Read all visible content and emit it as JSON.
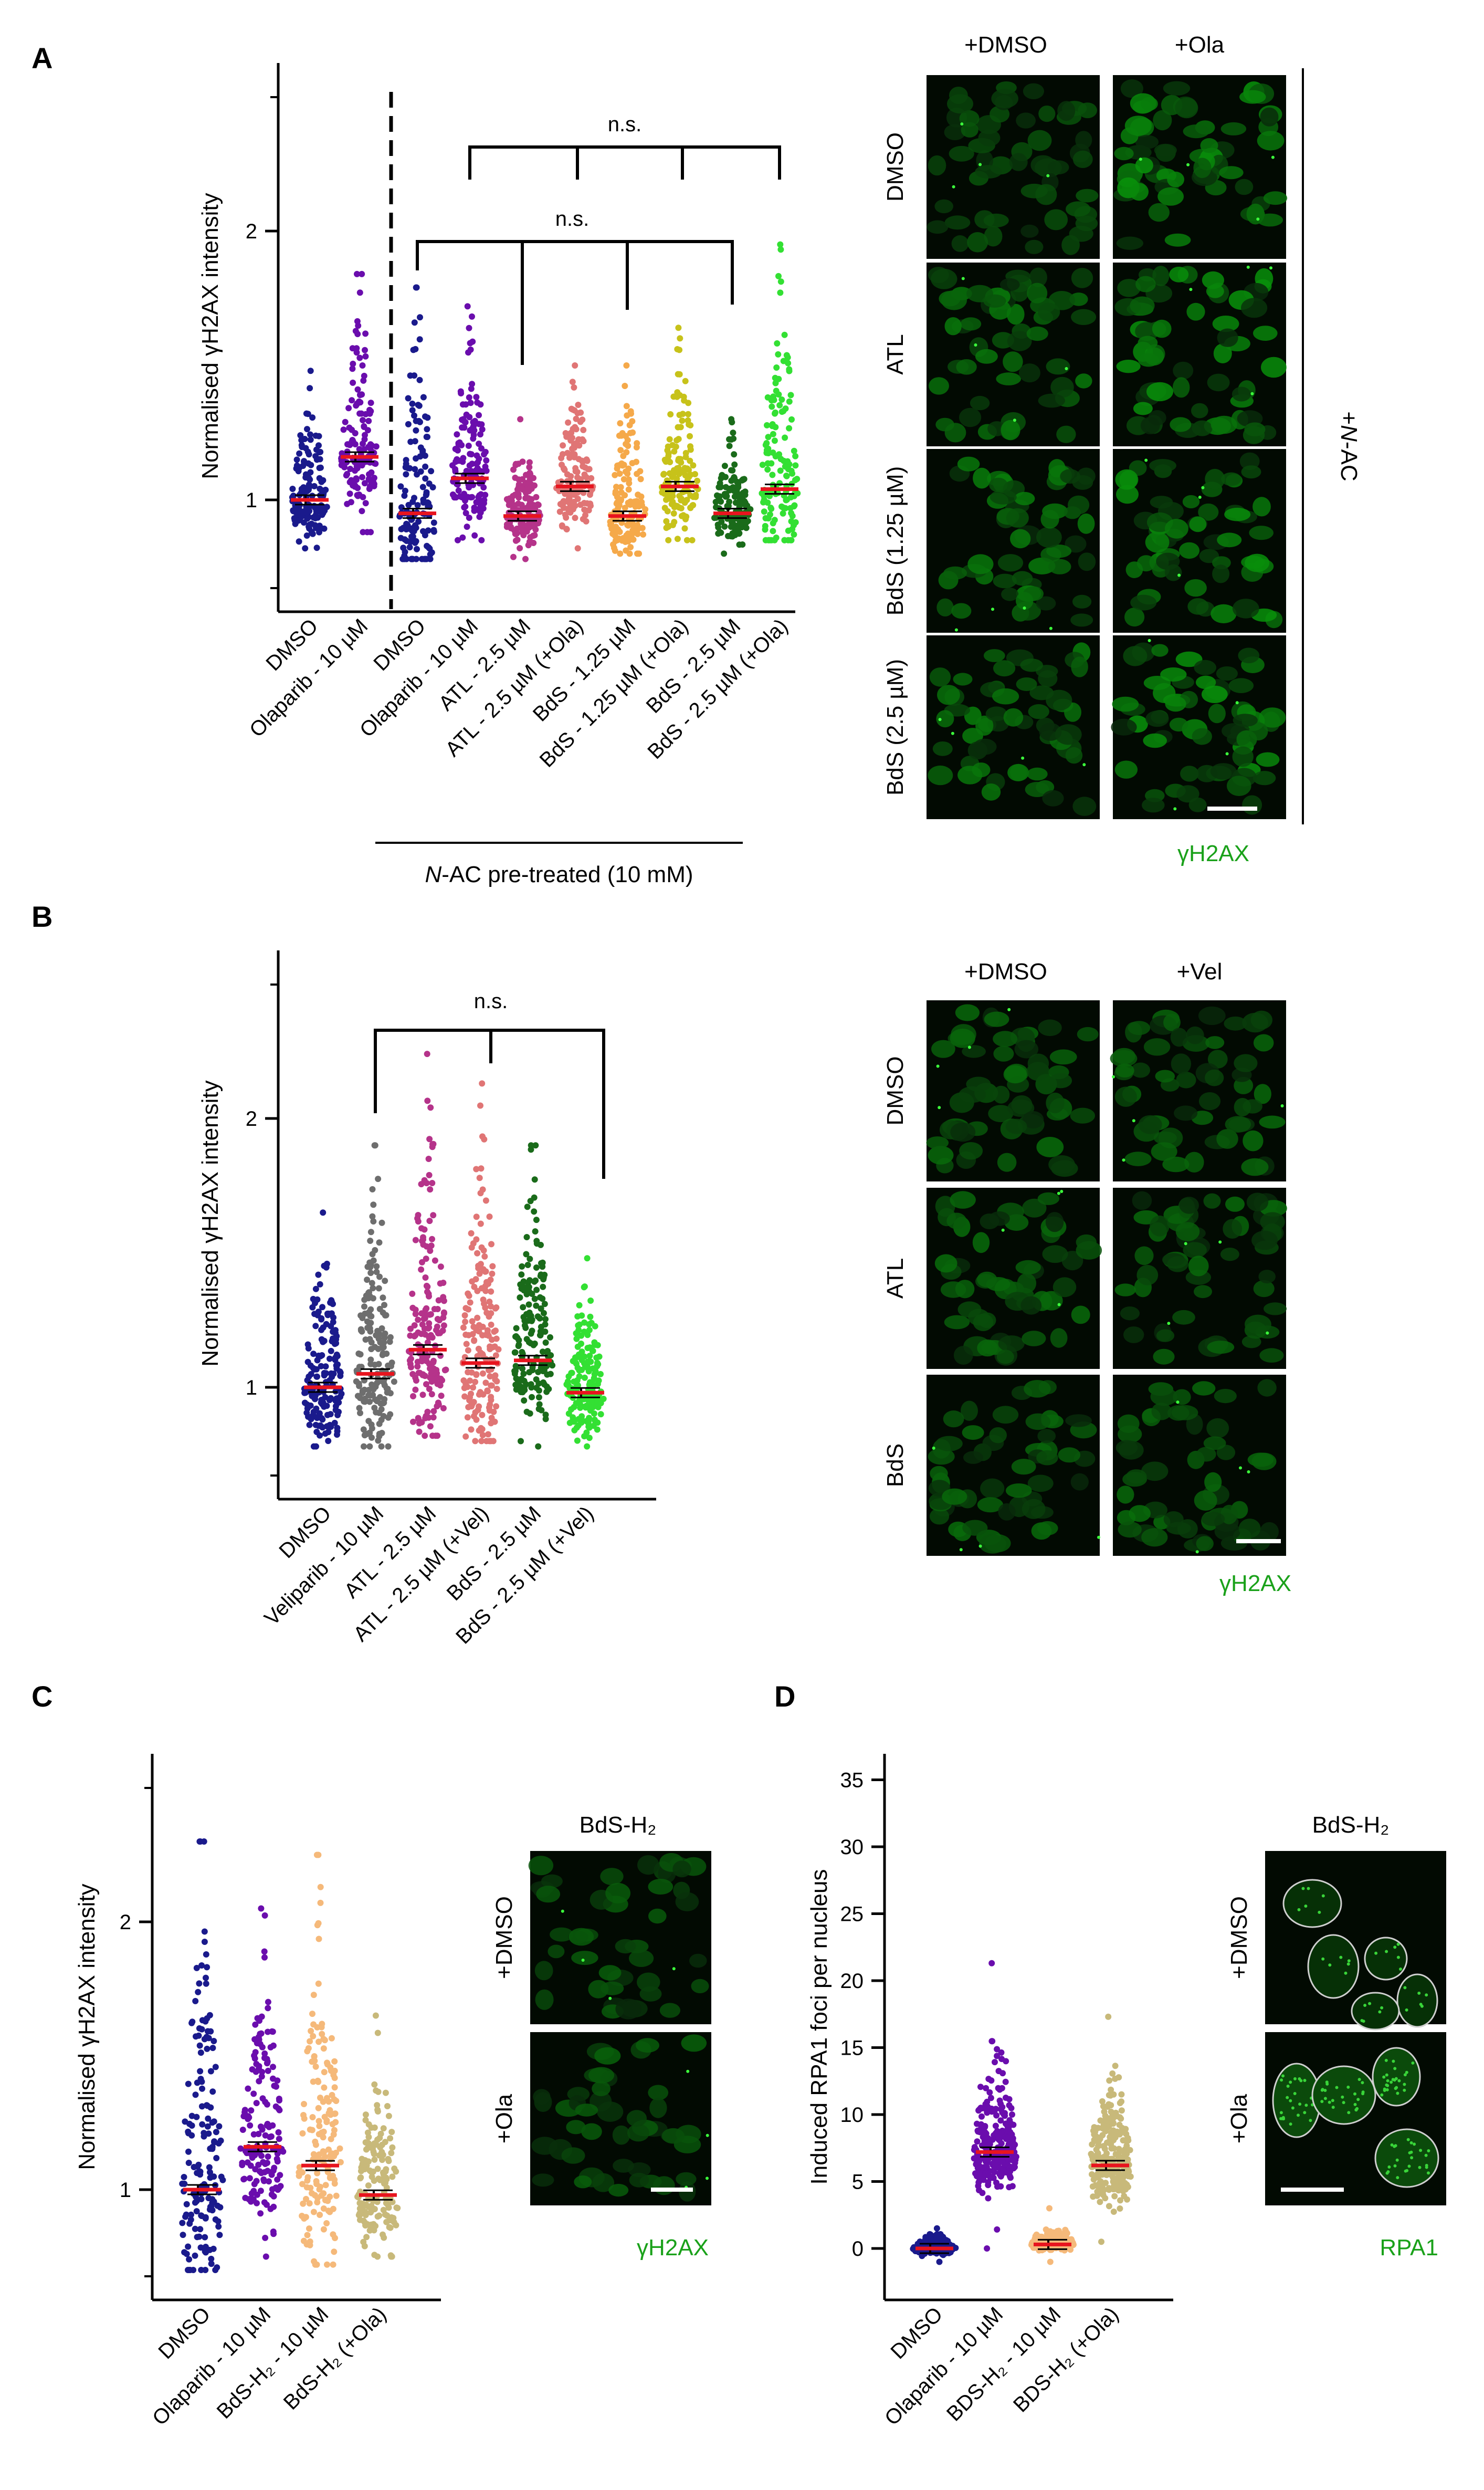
{
  "figure": {
    "panels": {
      "A": {
        "label": "A",
        "ylabel": "Normalised γH2AX intensity",
        "yticks": [
          "1",
          "2"
        ],
        "group_label": "N-AC pre-treated (10 mM)",
        "group_label_italic": "N",
        "group_label_rest": "-AC pre-treated (10 mM)",
        "ns1": "n.s.",
        "ns2": "n.s.",
        "micro": {
          "cols": [
            "+DMSO",
            "+Ola"
          ],
          "rows": [
            "DMSO",
            "ATL",
            "BdS (1.25 µM)",
            "BdS (2.5 µM)"
          ],
          "side_italic": "N",
          "side_prefix": "+",
          "side_rest": "-AC",
          "stain": "γH2AX"
        }
      },
      "B": {
        "label": "B",
        "ylabel": "Normalised γH2AX intensity",
        "yticks": [
          "1",
          "2"
        ],
        "ns1": "n.s.",
        "micro": {
          "cols": [
            "+DMSO",
            "+Vel"
          ],
          "rows": [
            "DMSO",
            "ATL",
            "BdS"
          ],
          "stain": "γH2AX"
        }
      },
      "C": {
        "label": "C",
        "ylabel": "Normalised γH2AX intensity",
        "yticks": [
          "1",
          "2"
        ],
        "micro": {
          "title": "BdS-H₂",
          "rows": [
            "+DMSO",
            "+Ola"
          ],
          "stain": "γH2AX"
        }
      },
      "D": {
        "label": "D",
        "ylabel": "Induced RPA1 foci per nucleus",
        "yticks": [
          "0",
          "5",
          "10",
          "15",
          "20",
          "25",
          "30",
          "35"
        ],
        "micro": {
          "title": "BdS-H₂",
          "rows": [
            "+DMSO",
            "+Ola"
          ],
          "stain": "RPA1"
        }
      }
    }
  },
  "chart_data": [
    {
      "type": "scatter",
      "panel": "A",
      "ylabel": "Normalised γH2AX intensity",
      "ylim": [
        0.6,
        2.5
      ],
      "categories": [
        "DMSO",
        "Olaparib - 10 µM",
        "DMSO",
        "Olaparib - 10 µM",
        "ATL - 2.5 µM",
        "ATL - 2.5 µM (+Ola)",
        "BdS - 1.25 µM",
        "BdS - 1.25 µM (+Ola)",
        "BdS - 2.5 µM",
        "BdS - 2.5 µM (+Ola)"
      ],
      "colors": [
        "#1a1a8c",
        "#6a0dad",
        "#1a1a8c",
        "#6a0dad",
        "#b5338a",
        "#e07575",
        "#f5a94a",
        "#c7c21a",
        "#1a6b1a",
        "#33e033"
      ],
      "values": [
        1.0,
        1.16,
        0.95,
        1.08,
        0.94,
        1.05,
        0.94,
        1.05,
        0.95,
        1.04
      ],
      "max": [
        1.48,
        1.84,
        1.79,
        1.72,
        1.3,
        1.5,
        1.5,
        1.64,
        1.3,
        1.95
      ],
      "min": [
        0.82,
        0.88,
        0.78,
        0.85,
        0.78,
        0.82,
        0.8,
        0.85,
        0.8,
        0.85
      ]
    },
    {
      "type": "scatter",
      "panel": "B",
      "ylabel": "Normalised γH2AX intensity",
      "ylim": [
        0.6,
        2.5
      ],
      "categories": [
        "DMSO",
        "Veliparib - 10 µM",
        "ATL - 2.5 µM",
        "ATL - 2.5 µM (+Vel)",
        "BdS - 2.5 µM",
        "BdS - 2.5 µM (+Vel)"
      ],
      "colors": [
        "#1a1a8c",
        "#6e6e6e",
        "#b5338a",
        "#e07575",
        "#1a6b1a",
        "#33e033"
      ],
      "values": [
        1.0,
        1.05,
        1.14,
        1.09,
        1.1,
        0.98
      ],
      "max": [
        1.65,
        1.9,
        2.24,
        2.13,
        1.9,
        1.48
      ],
      "min": [
        0.78,
        0.78,
        0.82,
        0.8,
        0.78,
        0.78
      ]
    },
    {
      "type": "scatter",
      "panel": "C",
      "ylabel": "Normalised γH2AX intensity",
      "ylim": [
        0.6,
        2.5
      ],
      "categories": [
        "DMSO",
        "Olaparib - 10 µM",
        "BdS-H₂ - 10 µM",
        "BdS-H₂ (+Ola)"
      ],
      "colors": [
        "#1a1a8c",
        "#6a0dad",
        "#f5b97a",
        "#c8b97a"
      ],
      "values": [
        1.0,
        1.16,
        1.09,
        0.98
      ],
      "max": [
        2.3,
        2.05,
        2.25,
        1.65
      ],
      "min": [
        0.7,
        0.75,
        0.72,
        0.75
      ]
    },
    {
      "type": "scatter",
      "panel": "D",
      "ylabel": "Induced RPA1 foci per nucleus",
      "ylim": [
        -1,
        36
      ],
      "categories": [
        "DMSO",
        "Olaparib - 10 µM",
        "BDS-H₂ - 10 µM",
        "BDS-H₂ (+Ola)"
      ],
      "colors": [
        "#1a1a8c",
        "#6a0dad",
        "#f5b97a",
        "#c8b97a"
      ],
      "values": [
        0.0,
        7.2,
        0.3,
        6.2
      ],
      "max": [
        1.5,
        21.3,
        3.0,
        17.3
      ],
      "min": [
        -1.0,
        0.0,
        -1.0,
        0.5
      ]
    }
  ]
}
